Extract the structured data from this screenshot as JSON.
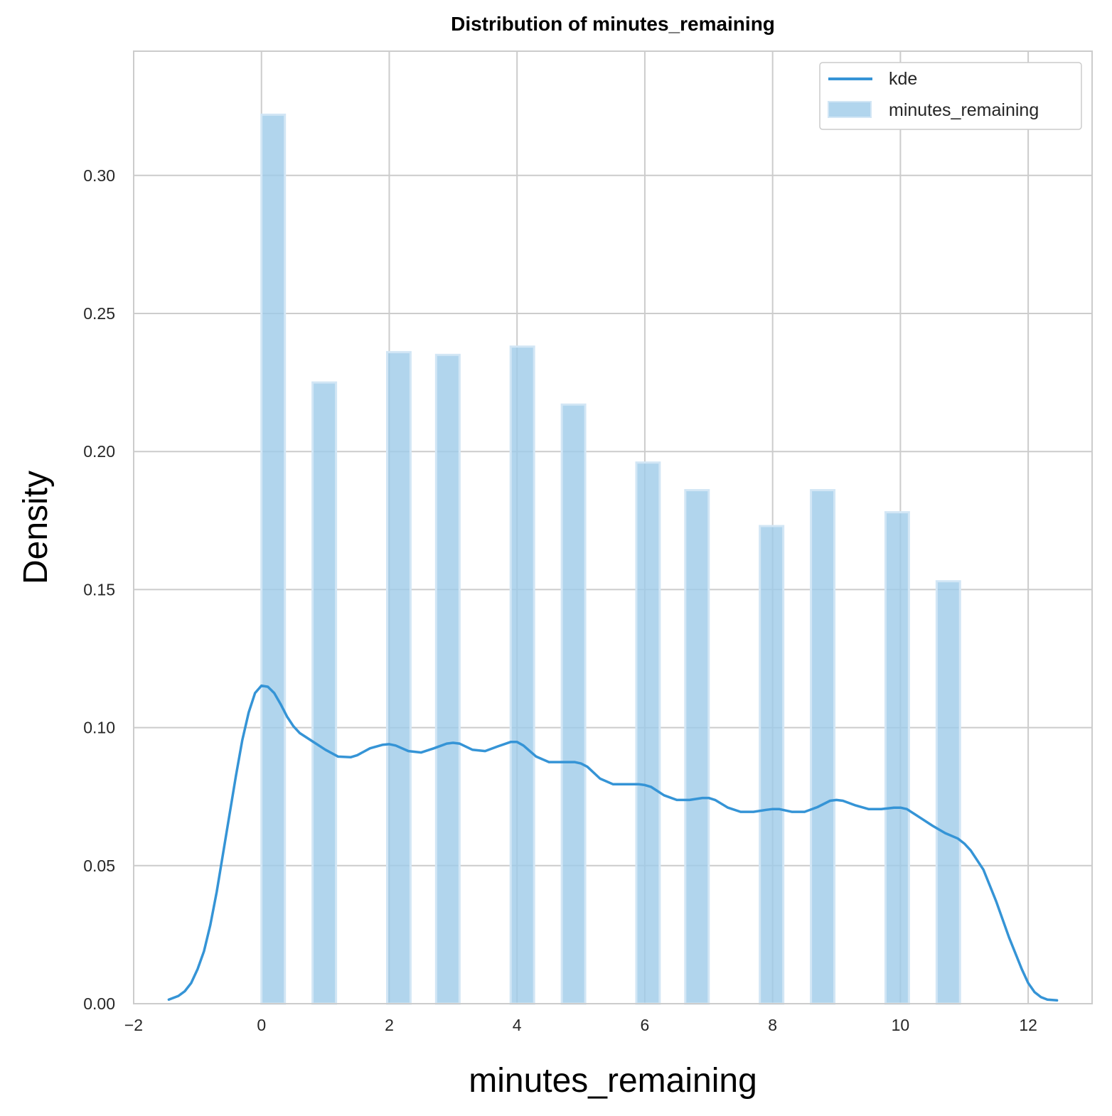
{
  "chart_data": {
    "type": "bar",
    "title": "Distribution of minutes_remaining",
    "xlabel": "minutes_remaining",
    "ylabel": "Density",
    "xlim": [
      -2.0,
      13.0
    ],
    "ylim": [
      0,
      0.345
    ],
    "xticks": [
      -2,
      0,
      2,
      4,
      6,
      8,
      10,
      12
    ],
    "yticks": [
      0.0,
      0.05,
      0.1,
      0.15,
      0.2,
      0.25,
      0.3
    ],
    "xtick_labels": [
      "−2",
      "0",
      "2",
      "4",
      "6",
      "8",
      "10",
      "12"
    ],
    "ytick_labels": [
      "0.00",
      "0.05",
      "0.10",
      "0.15",
      "0.20",
      "0.25",
      "0.30"
    ],
    "grid": true,
    "legend_position": "top-right",
    "colors": {
      "bar_fill": "#9ecae9",
      "bar_edge": "#d2e6f5",
      "kde_line": "#3594d6",
      "grid": "#cccccc",
      "frame": "#cccccc"
    },
    "histogram": {
      "name": "minutes_remaining",
      "bins": [
        {
          "x0": 0.0,
          "x1": 0.367,
          "density": 0.322
        },
        {
          "x0": 0.8,
          "x1": 1.167,
          "density": 0.225
        },
        {
          "x0": 1.967,
          "x1": 2.333,
          "density": 0.236
        },
        {
          "x0": 2.733,
          "x1": 3.1,
          "density": 0.235
        },
        {
          "x0": 3.9,
          "x1": 4.267,
          "density": 0.238
        },
        {
          "x0": 4.7,
          "x1": 5.067,
          "density": 0.217
        },
        {
          "x0": 5.867,
          "x1": 6.233,
          "density": 0.196
        },
        {
          "x0": 6.633,
          "x1": 7.0,
          "density": 0.186
        },
        {
          "x0": 7.8,
          "x1": 8.167,
          "density": 0.173
        },
        {
          "x0": 8.6,
          "x1": 8.967,
          "density": 0.186
        },
        {
          "x0": 9.767,
          "x1": 10.133,
          "density": 0.178
        },
        {
          "x0": 10.567,
          "x1": 10.933,
          "density": 0.153
        }
      ]
    },
    "kde": {
      "name": "kde",
      "x": [
        -1.45,
        -1.3,
        -1.2,
        -1.1,
        -1.0,
        -0.9,
        -0.8,
        -0.7,
        -0.6,
        -0.5,
        -0.4,
        -0.3,
        -0.2,
        -0.1,
        0.0,
        0.1,
        0.2,
        0.3,
        0.4,
        0.5,
        0.6,
        0.8,
        1.0,
        1.2,
        1.4,
        1.5,
        1.7,
        1.9,
        2.0,
        2.1,
        2.3,
        2.5,
        2.7,
        2.9,
        3.0,
        3.1,
        3.3,
        3.5,
        3.7,
        3.9,
        4.0,
        4.1,
        4.3,
        4.5,
        4.7,
        4.9,
        5.0,
        5.1,
        5.3,
        5.5,
        5.7,
        5.9,
        6.0,
        6.1,
        6.3,
        6.5,
        6.7,
        6.9,
        7.0,
        7.1,
        7.3,
        7.5,
        7.7,
        7.9,
        8.0,
        8.1,
        8.3,
        8.5,
        8.7,
        8.9,
        9.0,
        9.1,
        9.3,
        9.5,
        9.7,
        9.9,
        10.0,
        10.1,
        10.3,
        10.5,
        10.7,
        10.9,
        11.0,
        11.1,
        11.3,
        11.5,
        11.7,
        11.9,
        12.0,
        12.1,
        12.2,
        12.3,
        12.45
      ],
      "y": [
        0.0015,
        0.0028,
        0.0045,
        0.0075,
        0.0125,
        0.019,
        0.0285,
        0.0405,
        0.0545,
        0.0685,
        0.0825,
        0.0955,
        0.1055,
        0.1125,
        0.1152,
        0.1148,
        0.1125,
        0.1085,
        0.104,
        0.1005,
        0.098,
        0.095,
        0.092,
        0.0895,
        0.0893,
        0.09,
        0.0925,
        0.0938,
        0.094,
        0.0935,
        0.0915,
        0.091,
        0.0925,
        0.0942,
        0.0945,
        0.0942,
        0.092,
        0.0915,
        0.0932,
        0.0948,
        0.0948,
        0.0935,
        0.0895,
        0.0875,
        0.0875,
        0.0875,
        0.087,
        0.0858,
        0.0815,
        0.0795,
        0.0795,
        0.0795,
        0.0792,
        0.0785,
        0.0755,
        0.0738,
        0.0738,
        0.0745,
        0.0745,
        0.0738,
        0.071,
        0.0695,
        0.0695,
        0.0702,
        0.0705,
        0.0705,
        0.0695,
        0.0695,
        0.0712,
        0.0735,
        0.0738,
        0.0735,
        0.0718,
        0.0705,
        0.0705,
        0.071,
        0.071,
        0.0705,
        0.0675,
        0.0645,
        0.0618,
        0.0598,
        0.058,
        0.0555,
        0.0485,
        0.037,
        0.024,
        0.0125,
        0.0075,
        0.0042,
        0.0024,
        0.0015,
        0.0012
      ]
    },
    "legend": [
      "kde",
      "minutes_remaining"
    ]
  }
}
